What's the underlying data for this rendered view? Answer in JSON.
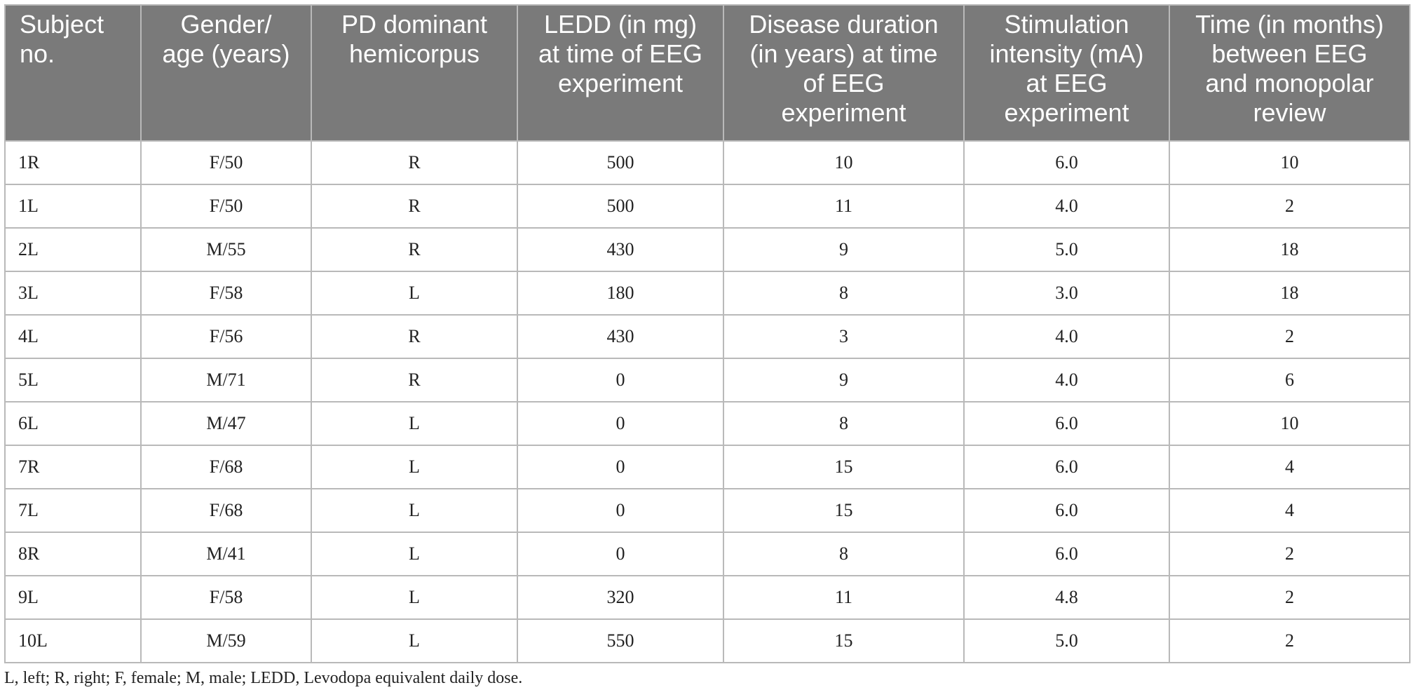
{
  "table": {
    "headers": [
      [
        "Subject",
        "no."
      ],
      [
        "Gender/",
        "age (years)"
      ],
      [
        "PD dominant",
        "hemicorpus"
      ],
      [
        "LEDD (in mg)",
        "at time of EEG",
        "experiment"
      ],
      [
        "Disease duration",
        "(in years) at time",
        "of EEG",
        "experiment"
      ],
      [
        "Stimulation",
        "intensity (mA)",
        "at EEG",
        "experiment"
      ],
      [
        "Time (in months)",
        "between EEG",
        "and monopolar",
        "review"
      ]
    ],
    "rows": [
      [
        "1R",
        "F/50",
        "R",
        "500",
        "10",
        "6.0",
        "10"
      ],
      [
        "1L",
        "F/50",
        "R",
        "500",
        "11",
        "4.0",
        "2"
      ],
      [
        "2L",
        "M/55",
        "R",
        "430",
        "9",
        "5.0",
        "18"
      ],
      [
        "3L",
        "F/58",
        "L",
        "180",
        "8",
        "3.0",
        "18"
      ],
      [
        "4L",
        "F/56",
        "R",
        "430",
        "3",
        "4.0",
        "2"
      ],
      [
        "5L",
        "M/71",
        "R",
        "0",
        "9",
        "4.0",
        "6"
      ],
      [
        "6L",
        "M/47",
        "L",
        "0",
        "8",
        "6.0",
        "10"
      ],
      [
        "7R",
        "F/68",
        "L",
        "0",
        "15",
        "6.0",
        "4"
      ],
      [
        "7L",
        "F/68",
        "L",
        "0",
        "15",
        "6.0",
        "4"
      ],
      [
        "8R",
        "M/41",
        "L",
        "0",
        "8",
        "6.0",
        "2"
      ],
      [
        "9L",
        "F/58",
        "L",
        "320",
        "11",
        "4.8",
        "2"
      ],
      [
        "10L",
        "M/59",
        "L",
        "550",
        "15",
        "5.0",
        "2"
      ]
    ]
  },
  "footnote": "L, left; R, right; F, female; M, male; LEDD, Levodopa equivalent daily dose.",
  "colors": {
    "header_bg": "#7a7a7a",
    "header_text": "#ffffff",
    "grid": "#b9b9b9"
  }
}
